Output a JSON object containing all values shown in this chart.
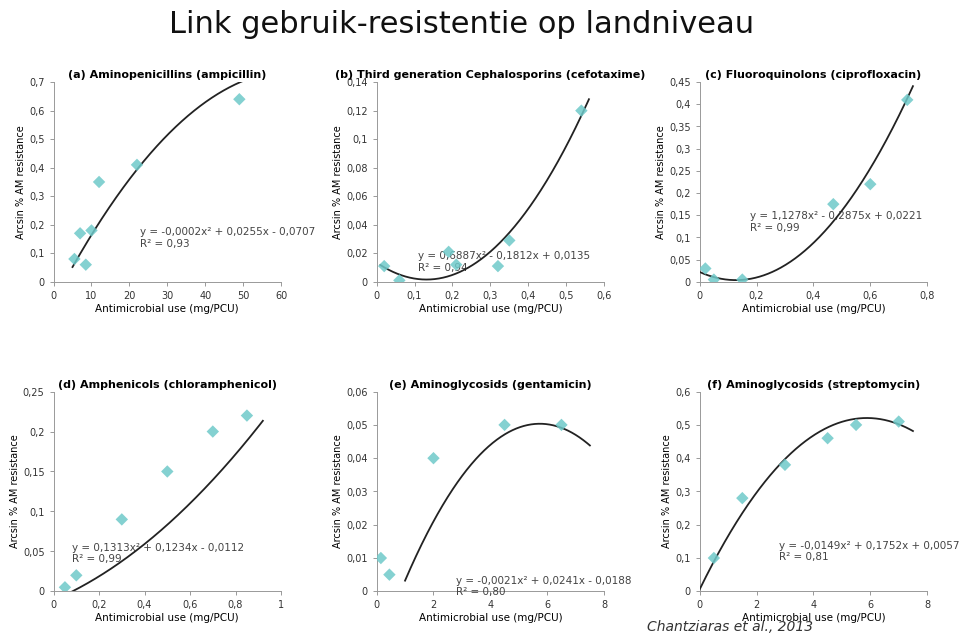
{
  "title": "Link gebruik-resistentie op landniveau",
  "title_fontsize": 22,
  "title_fontweight": "normal",
  "bg_color": "#ffffff",
  "plots": [
    {
      "label": "(a) Aminopenicillins (ampicillin)",
      "scatter_x": [
        5.5,
        7,
        8.5,
        10,
        12,
        22,
        49
      ],
      "scatter_y": [
        0.08,
        0.17,
        0.06,
        0.18,
        0.35,
        0.41,
        0.64
      ],
      "eq": "y = -0,0002x² + 0,0255x - 0,0707",
      "r2": "R² = 0,93",
      "poly": [
        -0.0002,
        0.0255,
        -0.0707
      ],
      "x_range": [
        0,
        60
      ],
      "y_range": [
        0,
        0.7
      ],
      "x_ticks": [
        0,
        10,
        20,
        30,
        40,
        50,
        60
      ],
      "y_ticks": [
        0,
        0.1,
        0.2,
        0.3,
        0.4,
        0.5,
        0.6,
        0.7
      ],
      "xlabel": "Antimicrobial use (mg/PCU)",
      "ylabel": "Arcsin % AM resistance",
      "eq_xa": 0.38,
      "eq_ya": 0.22,
      "curve_x_start": 5,
      "curve_x_end": 52
    },
    {
      "label": "(b) Third generation Cephalosporins (cefotaxime)",
      "scatter_x": [
        0.02,
        0.06,
        0.19,
        0.21,
        0.32,
        0.35,
        0.54
      ],
      "scatter_y": [
        0.011,
        0.001,
        0.021,
        0.012,
        0.011,
        0.029,
        0.12
      ],
      "eq": "y = 0,6887x² - 0,1812x + 0,0135",
      "r2": "R² = 0,94",
      "poly": [
        0.6887,
        -0.1812,
        0.0135
      ],
      "x_range": [
        0,
        0.6
      ],
      "y_range": [
        0,
        0.14
      ],
      "x_ticks": [
        0,
        0.1,
        0.2,
        0.3,
        0.4,
        0.5,
        0.6
      ],
      "y_ticks": [
        0,
        0.02,
        0.04,
        0.06,
        0.08,
        0.1,
        0.12,
        0.14
      ],
      "xlabel": "Antimicrobial use (mg/PCU)",
      "ylabel": "Arcsin % AM resistance",
      "eq_xa": 0.18,
      "eq_ya": 0.1,
      "curve_x_start": 0.01,
      "curve_x_end": 0.56
    },
    {
      "label": "(c) Fluoroquinolons (ciprofloxacin)",
      "scatter_x": [
        0.02,
        0.05,
        0.15,
        0.47,
        0.6,
        0.73
      ],
      "scatter_y": [
        0.03,
        0.005,
        0.005,
        0.175,
        0.22,
        0.41
      ],
      "eq": "y = 1,1278x² - 0,2875x + 0,0221",
      "r2": "R² = 0,99",
      "poly": [
        1.1278,
        -0.2875,
        0.0221
      ],
      "x_range": [
        0,
        0.8
      ],
      "y_range": [
        0,
        0.45
      ],
      "x_ticks": [
        0,
        0.2,
        0.4,
        0.6,
        0.8
      ],
      "y_ticks": [
        0,
        0.05,
        0.1,
        0.15,
        0.2,
        0.25,
        0.3,
        0.35,
        0.4,
        0.45
      ],
      "xlabel": "Antimicrobial use (mg/PCU)",
      "ylabel": "Arcsin % AM resistance",
      "eq_xa": 0.22,
      "eq_ya": 0.3,
      "curve_x_start": 0.0,
      "curve_x_end": 0.75
    },
    {
      "label": "(d) Amphenicols (chloramphenicol)",
      "scatter_x": [
        0.05,
        0.1,
        0.3,
        0.5,
        0.7,
        0.85
      ],
      "scatter_y": [
        0.005,
        0.02,
        0.09,
        0.15,
        0.2,
        0.22
      ],
      "eq": "y = 0,1313x² + 0,1234x - 0,0112",
      "r2": "R² = 0,99",
      "poly": [
        0.1313,
        0.1234,
        -0.0112
      ],
      "x_range": [
        0,
        1.0
      ],
      "y_range": [
        0,
        0.25
      ],
      "x_ticks": [
        0,
        0.2,
        0.4,
        0.6,
        0.8,
        1.0
      ],
      "y_ticks": [
        0,
        0.05,
        0.1,
        0.15,
        0.2,
        0.25
      ],
      "xlabel": "Antimicrobial use (mg/PCU)",
      "ylabel": "Arcsin % AM resistance",
      "eq_xa": 0.08,
      "eq_ya": 0.19,
      "curve_x_start": 0.0,
      "curve_x_end": 0.92
    },
    {
      "label": "(e) Aminoglycosids (gentamicin)",
      "scatter_x": [
        0.15,
        0.45,
        2.0,
        4.5,
        6.5
      ],
      "scatter_y": [
        0.01,
        0.005,
        0.04,
        0.05,
        0.05
      ],
      "eq": "y = -0,0021x² + 0,0241x - 0,0188",
      "r2": "R² = 0,80",
      "poly": [
        -0.0021,
        0.0241,
        -0.0188
      ],
      "x_range": [
        0,
        8
      ],
      "y_range": [
        0,
        0.06
      ],
      "x_ticks": [
        0,
        2,
        4,
        6,
        8
      ],
      "y_ticks": [
        0,
        0.01,
        0.02,
        0.03,
        0.04,
        0.05,
        0.06
      ],
      "xlabel": "Antimicrobial use (mg/PCU)",
      "ylabel": "Arcsin % AM resistance",
      "eq_xa": 0.35,
      "eq_ya": 0.024,
      "curve_x_start": 1.0,
      "curve_x_end": 7.5
    },
    {
      "label": "(f) Aminoglycosids (streptomycin)",
      "scatter_x": [
        0.5,
        1.5,
        3.0,
        4.5,
        5.5,
        7.0
      ],
      "scatter_y": [
        0.1,
        0.28,
        0.38,
        0.46,
        0.5,
        0.51
      ],
      "eq": "y = -0,0149x² + 0,1752x + 0,0057",
      "r2": "R² = 0,81",
      "poly": [
        -0.0149,
        0.1752,
        0.0057
      ],
      "x_range": [
        0,
        8
      ],
      "y_range": [
        0,
        0.6
      ],
      "x_ticks": [
        0,
        2,
        4,
        6,
        8
      ],
      "y_ticks": [
        0,
        0.1,
        0.2,
        0.3,
        0.4,
        0.5,
        0.6
      ],
      "xlabel": "Antimicrobial use (mg/PCU)",
      "ylabel": "Arcsin % AM resistance",
      "eq_xa": 0.35,
      "eq_ya": 0.2,
      "curve_x_start": 0.0,
      "curve_x_end": 7.5
    }
  ],
  "scatter_color": "#6ec9c9",
  "scatter_marker": "D",
  "scatter_size": 40,
  "scatter_alpha": 0.85,
  "curve_color": "#222222",
  "curve_lw": 1.3,
  "footnote": "Chantziaras et al., 2013",
  "footnote_fontsize": 10,
  "eq_fontsize": 7.5,
  "tick_fontsize": 7,
  "label_fontsize": 7,
  "xlabel_fontsize": 7.5,
  "title_fontsize_sub": 8
}
